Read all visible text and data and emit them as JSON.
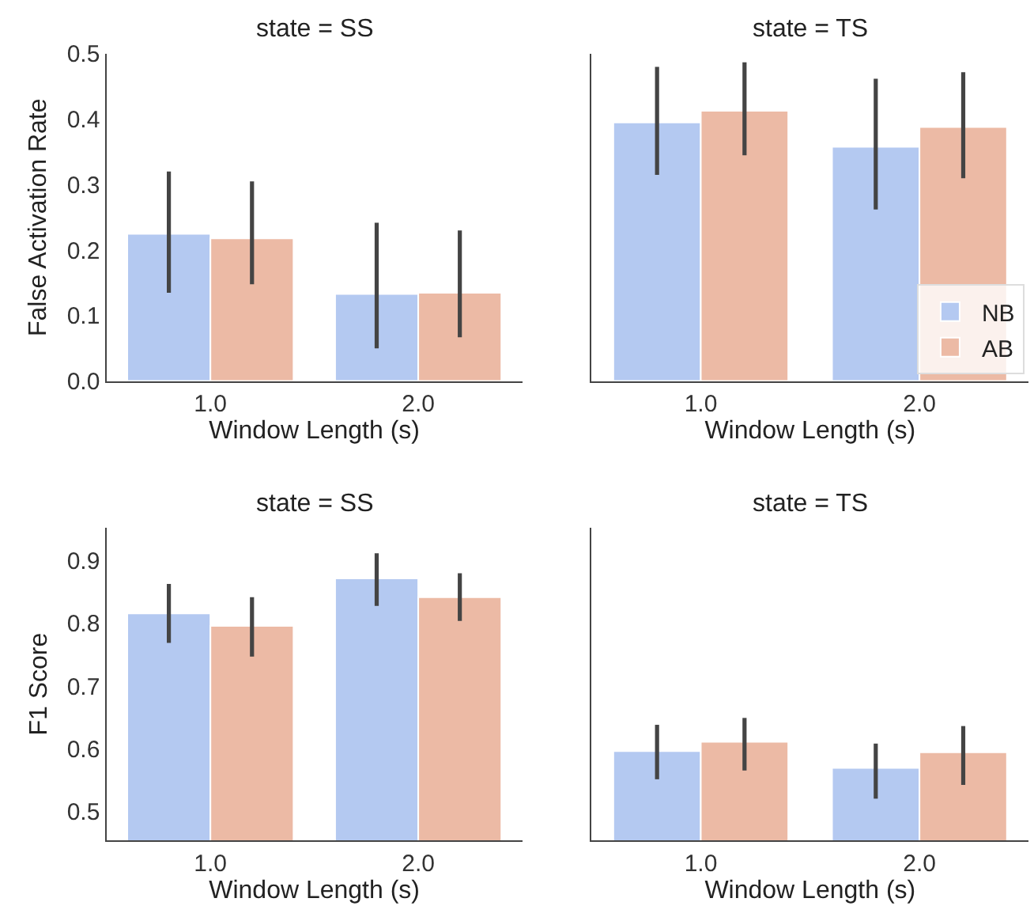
{
  "chart_data": [
    {
      "type": "bar",
      "title": "state = SS",
      "xlabel": "Window Length (s)",
      "ylabel": "False Activation Rate",
      "categories": [
        "1.0",
        "2.0"
      ],
      "ylim": [
        0,
        0.5
      ],
      "yticks": [
        {
          "value": 0,
          "label": "0.0"
        },
        0.1,
        0.2,
        0.3,
        0.4,
        0.5
      ],
      "series": [
        {
          "color": "#b4c9f1",
          "values": [
            0.225,
            0.133
          ],
          "errors": [
            [
              0.135,
              0.32
            ],
            [
              0.05,
              0.242
            ]
          ]
        },
        {
          "color": "#ecbaa5",
          "values": [
            0.218,
            0.135
          ],
          "errors": [
            [
              0.148,
              0.305
            ],
            [
              0.067,
              0.23
            ]
          ]
        }
      ]
    },
    {
      "type": "bar",
      "title": "state = TS",
      "xlabel": "Window Length (s)",
      "categories": [
        "1.0",
        "2.0"
      ],
      "ylim": [
        0,
        0.5
      ],
      "tick_labels": "x",
      "legend": "bottom right",
      "series": [
        {
          "name": "NB",
          "color": "#b4c9f1",
          "values": [
            0.395,
            0.358
          ],
          "errors": [
            [
              0.315,
              0.48
            ],
            [
              0.262,
              0.462
            ]
          ]
        },
        {
          "name": "AB",
          "color": "#ecbaa5",
          "values": [
            0.413,
            0.388
          ],
          "errors": [
            [
              0.345,
              0.487
            ],
            [
              0.31,
              0.472
            ]
          ]
        }
      ]
    },
    {
      "type": "bar",
      "title": "state = SS",
      "xlabel": "Window Length (s)",
      "ylabel": "F1 Score",
      "categories": [
        "1.0",
        "2.0"
      ],
      "ylim": [
        0.453,
        0.953
      ],
      "yticks": [
        0.5,
        0.6,
        0.7,
        0.8,
        0.9
      ],
      "series": [
        {
          "color": "#b4c9f1",
          "values": [
            0.816,
            0.872
          ],
          "errors": [
            [
              0.769,
              0.863
            ],
            [
              0.828,
              0.912
            ]
          ]
        },
        {
          "color": "#ecbaa5",
          "values": [
            0.796,
            0.842
          ],
          "errors": [
            [
              0.747,
              0.842
            ],
            [
              0.804,
              0.88
            ]
          ]
        }
      ]
    },
    {
      "type": "bar",
      "title": "state = TS",
      "xlabel": "Window Length (s)",
      "categories": [
        "1.0",
        "2.0"
      ],
      "ylim": [
        0.453,
        0.953
      ],
      "tick_labels": "x",
      "series": [
        {
          "color": "#b4c9f1",
          "values": [
            0.596,
            0.569
          ],
          "errors": [
            [
              0.551,
              0.638
            ],
            [
              0.52,
              0.608
            ]
          ]
        },
        {
          "color": "#ecbaa5",
          "values": [
            0.611,
            0.594
          ],
          "errors": [
            [
              0.565,
              0.649
            ],
            [
              0.542,
              0.636
            ]
          ]
        }
      ]
    }
  ]
}
